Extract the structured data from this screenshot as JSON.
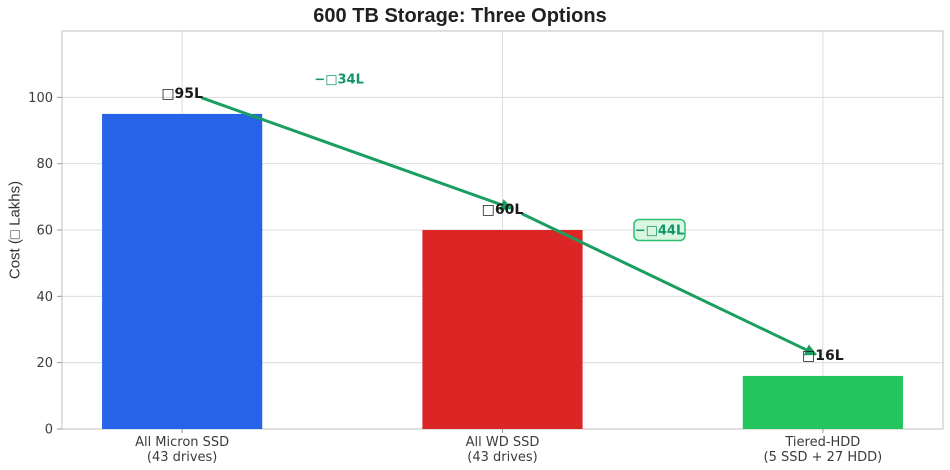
{
  "chart_data": {
    "type": "bar",
    "title": "600 TB Storage: Three Options",
    "ylabel": "Cost (□ Lakhs)",
    "xlabel": "",
    "ylim": [
      0,
      120
    ],
    "yticks": [
      0,
      20,
      40,
      60,
      80,
      100
    ],
    "grid": true,
    "legend": false,
    "categories": [
      "All Micron SSD\n(43 drives)",
      "All WD SSD\n(43 drives)",
      "Tiered-HDD\n(5 SSD + 27 HDD)"
    ],
    "values": [
      95,
      60,
      16
    ],
    "bar_labels": [
      "□95L",
      "□60L",
      "□16L"
    ],
    "bar_colors": [
      "#2763e8",
      "#dc2626",
      "#22c55e"
    ],
    "arrows": [
      {
        "from_bar": 0,
        "to_bar": 1,
        "label": "−□34L",
        "boxed": false,
        "label_x": 0.49,
        "label_y": 105.5
      },
      {
        "from_bar": 1,
        "to_bar": 2,
        "label": "−□44L",
        "boxed": true,
        "label_x": 1.49,
        "label_y": 60
      }
    ],
    "arrow_color": "#1b9e62",
    "annotation_text_color": "#129669",
    "annotation_box_fill": "#d9f6e0",
    "annotation_box_border": "#2fbf71"
  }
}
